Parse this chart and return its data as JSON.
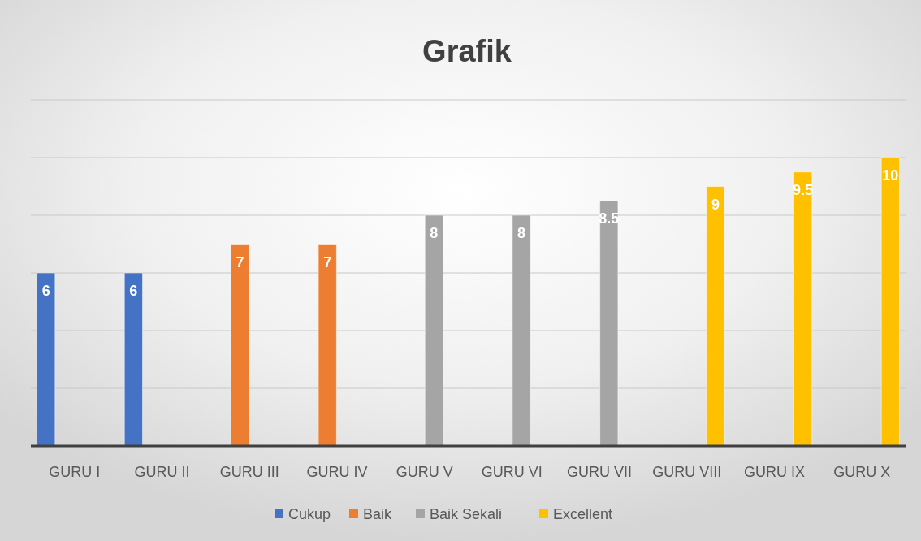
{
  "chart_data": {
    "type": "bar",
    "title": "Grafik",
    "categories": [
      "GURU I",
      "GURU II",
      "GURU III",
      "GURU IV",
      "GURU V",
      "GURU VI",
      "GURU VII",
      "GURU VIII",
      "GURU IX",
      "GURU X"
    ],
    "series": [
      {
        "name": "Cukup",
        "color": "#4472c4",
        "values": [
          6,
          6,
          null,
          null,
          null,
          null,
          null,
          null,
          null,
          null
        ]
      },
      {
        "name": "Baik",
        "color": "#ed7d31",
        "values": [
          null,
          null,
          7,
          7,
          null,
          null,
          null,
          null,
          null,
          null
        ]
      },
      {
        "name": "Baik Sekali",
        "color": "#a5a5a5",
        "values": [
          null,
          null,
          null,
          null,
          8,
          8,
          8.5,
          null,
          null,
          null
        ]
      },
      {
        "name": "Excellent",
        "color": "#ffc000",
        "values": [
          null,
          null,
          null,
          null,
          null,
          null,
          null,
          9,
          9.5,
          10
        ]
      }
    ],
    "ylim": [
      0,
      12
    ],
    "yticks": [
      {
        "value": 0,
        "label": null
      },
      {
        "value": 2,
        "label": null
      },
      {
        "value": 4,
        "label": null
      },
      {
        "value": 6,
        "label": null
      },
      {
        "value": 8,
        "label": null
      },
      {
        "value": 10,
        "label": null
      },
      {
        "value": 12,
        "label": null
      }
    ],
    "grid": "y",
    "tick_labels": "x",
    "data_labels": true,
    "legend": "bottom"
  }
}
